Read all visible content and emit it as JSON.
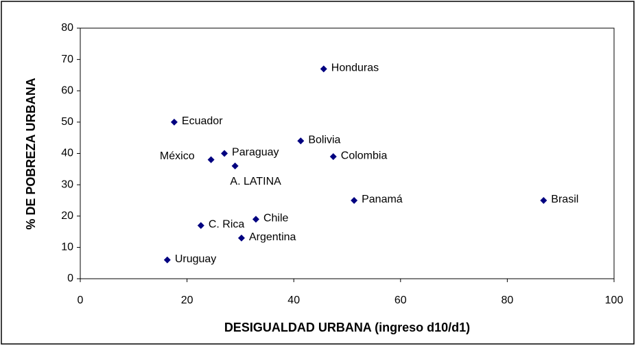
{
  "chart_data": {
    "type": "scatter",
    "x_label": "DESIGUALDAD URBANA (ingreso d10/d1)",
    "y_label": "% DE POBREZA URBANA",
    "point_labels": [
      "Honduras",
      "Ecuador",
      "Bolivia",
      "Paraguay",
      "Colombia",
      "México",
      "A. LATINA",
      "Panamá",
      "Brasil",
      "Chile",
      "C. Rica",
      "Argentina",
      "Uruguay"
    ],
    "x": [
      45.6,
      17.6,
      41.3,
      27,
      47.4,
      24.5,
      29,
      51.3,
      86.8,
      32.9,
      22.6,
      30.2,
      16.3
    ],
    "values": [
      67,
      50,
      44,
      40,
      39,
      38,
      36,
      25,
      25,
      19,
      17,
      13,
      6
    ],
    "color": "#000080",
    "xlim": [
      0,
      100
    ],
    "xticks": [
      0,
      20,
      40,
      60,
      80,
      100
    ],
    "ylim": [
      0,
      80
    ],
    "yticks": [
      0,
      10,
      20,
      30,
      40,
      50,
      60,
      70,
      80
    ],
    "grid": false
  }
}
